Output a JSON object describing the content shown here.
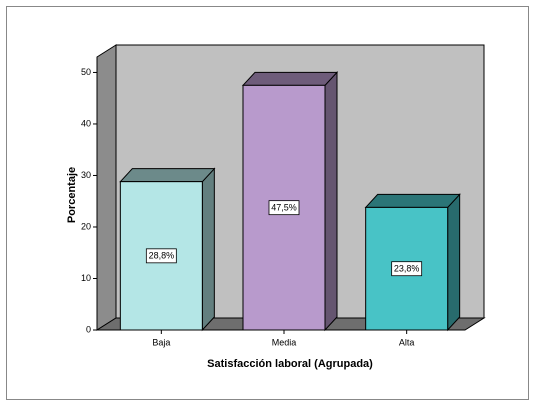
{
  "chart_data": {
    "type": "bar3d",
    "xlabel": "Satisfacción laboral (Agrupada)",
    "ylabel": "Porcentaje",
    "categories": [
      "Baja",
      "Media",
      "Alta"
    ],
    "values": [
      28.8,
      47.5,
      23.8
    ],
    "value_labels": [
      "28,8%",
      "47,5%",
      "23,8%"
    ],
    "colors": [
      "#b4e6e6",
      "#b89acc",
      "#48c3c6"
    ],
    "ylim": [
      0,
      53
    ],
    "yticks": [
      0,
      10,
      20,
      30,
      40,
      50
    ]
  }
}
